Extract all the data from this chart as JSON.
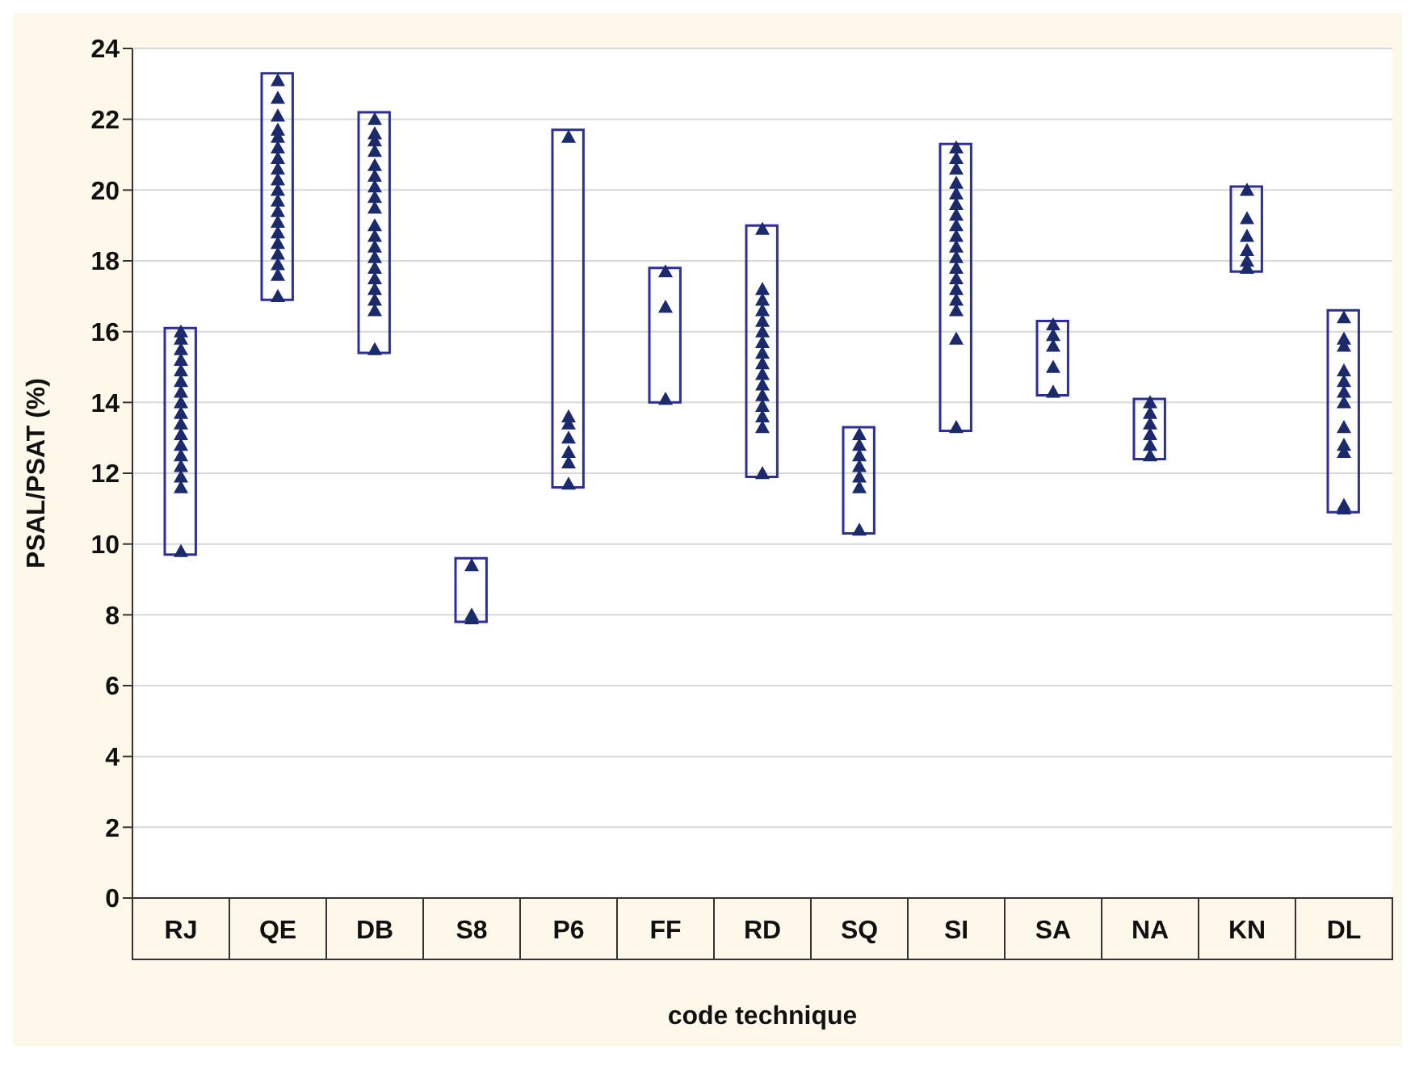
{
  "chart_data": {
    "type": "bar",
    "xlabel": "code technique",
    "ylabel": "PSAL/PSAT (%)",
    "categories": [
      "RJ",
      "QE",
      "DB",
      "S8",
      "P6",
      "FF",
      "RD",
      "SQ",
      "SI",
      "SA",
      "NA",
      "KN",
      "DL"
    ],
    "ylim": [
      0,
      24
    ],
    "yticks": [
      0,
      2,
      4,
      6,
      8,
      10,
      12,
      14,
      16,
      18,
      20,
      22,
      24
    ],
    "grid": "y",
    "series": [
      {
        "color": "#2e2e9a",
        "base": [
          9.7,
          16.9,
          15.4,
          7.8,
          11.6,
          14.0,
          11.9,
          10.3,
          13.2,
          14.2,
          12.4,
          17.7,
          10.9
        ],
        "values": [
          6.4,
          6.4,
          6.8,
          1.8,
          10.1,
          3.8,
          7.1,
          3.0,
          8.1,
          2.1,
          1.7,
          2.4,
          5.7
        ]
      },
      {
        "type": "scatter",
        "color": "#1b2a6b",
        "marker": "triangle",
        "x": [
          "RJ",
          "RJ",
          "RJ",
          "RJ",
          "RJ",
          "RJ",
          "RJ",
          "RJ",
          "RJ",
          "RJ",
          "RJ",
          "RJ",
          "RJ",
          "RJ",
          "RJ",
          "RJ",
          "RJ",
          "QE",
          "QE",
          "QE",
          "QE",
          "QE",
          "QE",
          "QE",
          "QE",
          "QE",
          "QE",
          "QE",
          "QE",
          "QE",
          "QE",
          "QE",
          "QE",
          "QE",
          "QE",
          "QE",
          "DB",
          "DB",
          "DB",
          "DB",
          "DB",
          "DB",
          "DB",
          "DB",
          "DB",
          "DB",
          "DB",
          "DB",
          "DB",
          "DB",
          "DB",
          "DB",
          "DB",
          "DB",
          "DB",
          "S8",
          "S8",
          "S8",
          "P6",
          "P6",
          "P6",
          "P6",
          "P6",
          "P6",
          "P6",
          "FF",
          "FF",
          "FF",
          "RD",
          "RD",
          "RD",
          "RD",
          "RD",
          "RD",
          "RD",
          "RD",
          "RD",
          "RD",
          "RD",
          "RD",
          "RD",
          "RD",
          "RD",
          "RD",
          "SQ",
          "SQ",
          "SQ",
          "SQ",
          "SQ",
          "SQ",
          "SQ",
          "SI",
          "SI",
          "SI",
          "SI",
          "SI",
          "SI",
          "SI",
          "SI",
          "SI",
          "SI",
          "SI",
          "SI",
          "SI",
          "SI",
          "SI",
          "SI",
          "SI",
          "SI",
          "SA",
          "SA",
          "SA",
          "SA",
          "SA",
          "NA",
          "NA",
          "NA",
          "NA",
          "NA",
          "NA",
          "KN",
          "KN",
          "KN",
          "KN",
          "KN",
          "KN",
          "DL",
          "DL",
          "DL",
          "DL",
          "DL",
          "DL",
          "DL",
          "DL",
          "DL",
          "DL",
          "DL",
          "DL"
        ],
        "values": [
          9.8,
          11.6,
          11.9,
          12.2,
          12.5,
          12.8,
          13.1,
          13.4,
          13.7,
          14.0,
          14.3,
          14.6,
          14.9,
          15.2,
          15.5,
          15.8,
          16.0,
          17.0,
          17.6,
          17.9,
          18.2,
          18.5,
          18.8,
          19.1,
          19.4,
          19.7,
          20.0,
          20.3,
          20.6,
          20.9,
          21.2,
          21.5,
          21.7,
          22.1,
          22.6,
          23.1,
          15.5,
          16.6,
          16.9,
          17.2,
          17.5,
          17.8,
          18.1,
          18.4,
          18.7,
          19.0,
          19.5,
          19.8,
          20.1,
          20.4,
          20.7,
          21.1,
          21.4,
          21.6,
          22.0,
          7.9,
          8.0,
          9.4,
          11.7,
          12.3,
          12.6,
          13.0,
          13.4,
          13.6,
          21.5,
          14.1,
          16.7,
          17.7,
          12.0,
          13.3,
          13.6,
          13.9,
          14.2,
          14.5,
          14.8,
          15.1,
          15.4,
          15.7,
          16.0,
          16.3,
          16.6,
          16.9,
          17.2,
          18.9,
          10.4,
          11.6,
          11.9,
          12.2,
          12.5,
          12.8,
          13.1,
          13.3,
          15.8,
          16.6,
          16.9,
          17.2,
          17.5,
          17.8,
          18.1,
          18.4,
          18.7,
          19.0,
          19.3,
          19.6,
          19.9,
          20.2,
          20.6,
          20.9,
          21.2,
          14.3,
          15.0,
          15.6,
          15.9,
          16.2,
          12.5,
          12.8,
          13.1,
          13.4,
          13.7,
          14.0,
          17.8,
          18.0,
          18.3,
          18.7,
          19.2,
          20.0,
          11.0,
          11.1,
          12.6,
          12.8,
          13.3,
          14.0,
          14.3,
          14.6,
          14.9,
          15.6,
          15.8,
          16.4
        ]
      }
    ]
  }
}
